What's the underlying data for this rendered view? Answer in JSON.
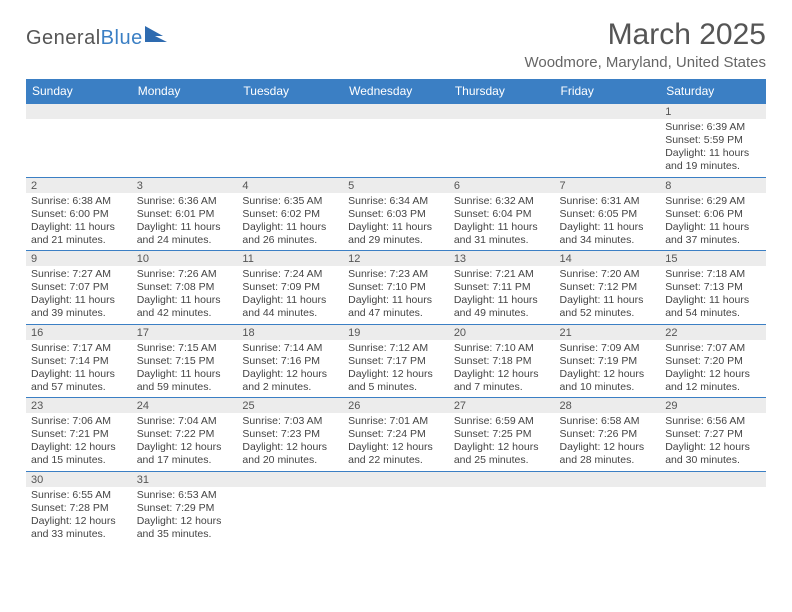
{
  "logo": {
    "text1": "General",
    "text2": "Blue"
  },
  "title": "March 2025",
  "location": "Woodmore, Maryland, United States",
  "headers": [
    "Sunday",
    "Monday",
    "Tuesday",
    "Wednesday",
    "Thursday",
    "Friday",
    "Saturday"
  ],
  "colors": {
    "header_bg": "#3b7fc4",
    "header_text": "#ffffff",
    "shade": "#ececec",
    "border": "#3b7fc4",
    "text": "#444444",
    "title_text": "#555555"
  },
  "weeks": [
    [
      null,
      null,
      null,
      null,
      null,
      null,
      {
        "n": "1",
        "sunrise": "Sunrise: 6:39 AM",
        "sunset": "Sunset: 5:59 PM",
        "day": "Daylight: 11 hours and 19 minutes."
      }
    ],
    [
      {
        "n": "2",
        "sunrise": "Sunrise: 6:38 AM",
        "sunset": "Sunset: 6:00 PM",
        "day": "Daylight: 11 hours and 21 minutes."
      },
      {
        "n": "3",
        "sunrise": "Sunrise: 6:36 AM",
        "sunset": "Sunset: 6:01 PM",
        "day": "Daylight: 11 hours and 24 minutes."
      },
      {
        "n": "4",
        "sunrise": "Sunrise: 6:35 AM",
        "sunset": "Sunset: 6:02 PM",
        "day": "Daylight: 11 hours and 26 minutes."
      },
      {
        "n": "5",
        "sunrise": "Sunrise: 6:34 AM",
        "sunset": "Sunset: 6:03 PM",
        "day": "Daylight: 11 hours and 29 minutes."
      },
      {
        "n": "6",
        "sunrise": "Sunrise: 6:32 AM",
        "sunset": "Sunset: 6:04 PM",
        "day": "Daylight: 11 hours and 31 minutes."
      },
      {
        "n": "7",
        "sunrise": "Sunrise: 6:31 AM",
        "sunset": "Sunset: 6:05 PM",
        "day": "Daylight: 11 hours and 34 minutes."
      },
      {
        "n": "8",
        "sunrise": "Sunrise: 6:29 AM",
        "sunset": "Sunset: 6:06 PM",
        "day": "Daylight: 11 hours and 37 minutes."
      }
    ],
    [
      {
        "n": "9",
        "sunrise": "Sunrise: 7:27 AM",
        "sunset": "Sunset: 7:07 PM",
        "day": "Daylight: 11 hours and 39 minutes."
      },
      {
        "n": "10",
        "sunrise": "Sunrise: 7:26 AM",
        "sunset": "Sunset: 7:08 PM",
        "day": "Daylight: 11 hours and 42 minutes."
      },
      {
        "n": "11",
        "sunrise": "Sunrise: 7:24 AM",
        "sunset": "Sunset: 7:09 PM",
        "day": "Daylight: 11 hours and 44 minutes."
      },
      {
        "n": "12",
        "sunrise": "Sunrise: 7:23 AM",
        "sunset": "Sunset: 7:10 PM",
        "day": "Daylight: 11 hours and 47 minutes."
      },
      {
        "n": "13",
        "sunrise": "Sunrise: 7:21 AM",
        "sunset": "Sunset: 7:11 PM",
        "day": "Daylight: 11 hours and 49 minutes."
      },
      {
        "n": "14",
        "sunrise": "Sunrise: 7:20 AM",
        "sunset": "Sunset: 7:12 PM",
        "day": "Daylight: 11 hours and 52 minutes."
      },
      {
        "n": "15",
        "sunrise": "Sunrise: 7:18 AM",
        "sunset": "Sunset: 7:13 PM",
        "day": "Daylight: 11 hours and 54 minutes."
      }
    ],
    [
      {
        "n": "16",
        "sunrise": "Sunrise: 7:17 AM",
        "sunset": "Sunset: 7:14 PM",
        "day": "Daylight: 11 hours and 57 minutes."
      },
      {
        "n": "17",
        "sunrise": "Sunrise: 7:15 AM",
        "sunset": "Sunset: 7:15 PM",
        "day": "Daylight: 11 hours and 59 minutes."
      },
      {
        "n": "18",
        "sunrise": "Sunrise: 7:14 AM",
        "sunset": "Sunset: 7:16 PM",
        "day": "Daylight: 12 hours and 2 minutes."
      },
      {
        "n": "19",
        "sunrise": "Sunrise: 7:12 AM",
        "sunset": "Sunset: 7:17 PM",
        "day": "Daylight: 12 hours and 5 minutes."
      },
      {
        "n": "20",
        "sunrise": "Sunrise: 7:10 AM",
        "sunset": "Sunset: 7:18 PM",
        "day": "Daylight: 12 hours and 7 minutes."
      },
      {
        "n": "21",
        "sunrise": "Sunrise: 7:09 AM",
        "sunset": "Sunset: 7:19 PM",
        "day": "Daylight: 12 hours and 10 minutes."
      },
      {
        "n": "22",
        "sunrise": "Sunrise: 7:07 AM",
        "sunset": "Sunset: 7:20 PM",
        "day": "Daylight: 12 hours and 12 minutes."
      }
    ],
    [
      {
        "n": "23",
        "sunrise": "Sunrise: 7:06 AM",
        "sunset": "Sunset: 7:21 PM",
        "day": "Daylight: 12 hours and 15 minutes."
      },
      {
        "n": "24",
        "sunrise": "Sunrise: 7:04 AM",
        "sunset": "Sunset: 7:22 PM",
        "day": "Daylight: 12 hours and 17 minutes."
      },
      {
        "n": "25",
        "sunrise": "Sunrise: 7:03 AM",
        "sunset": "Sunset: 7:23 PM",
        "day": "Daylight: 12 hours and 20 minutes."
      },
      {
        "n": "26",
        "sunrise": "Sunrise: 7:01 AM",
        "sunset": "Sunset: 7:24 PM",
        "day": "Daylight: 12 hours and 22 minutes."
      },
      {
        "n": "27",
        "sunrise": "Sunrise: 6:59 AM",
        "sunset": "Sunset: 7:25 PM",
        "day": "Daylight: 12 hours and 25 minutes."
      },
      {
        "n": "28",
        "sunrise": "Sunrise: 6:58 AM",
        "sunset": "Sunset: 7:26 PM",
        "day": "Daylight: 12 hours and 28 minutes."
      },
      {
        "n": "29",
        "sunrise": "Sunrise: 6:56 AM",
        "sunset": "Sunset: 7:27 PM",
        "day": "Daylight: 12 hours and 30 minutes."
      }
    ],
    [
      {
        "n": "30",
        "sunrise": "Sunrise: 6:55 AM",
        "sunset": "Sunset: 7:28 PM",
        "day": "Daylight: 12 hours and 33 minutes."
      },
      {
        "n": "31",
        "sunrise": "Sunrise: 6:53 AM",
        "sunset": "Sunset: 7:29 PM",
        "day": "Daylight: 12 hours and 35 minutes."
      },
      null,
      null,
      null,
      null,
      null
    ]
  ]
}
